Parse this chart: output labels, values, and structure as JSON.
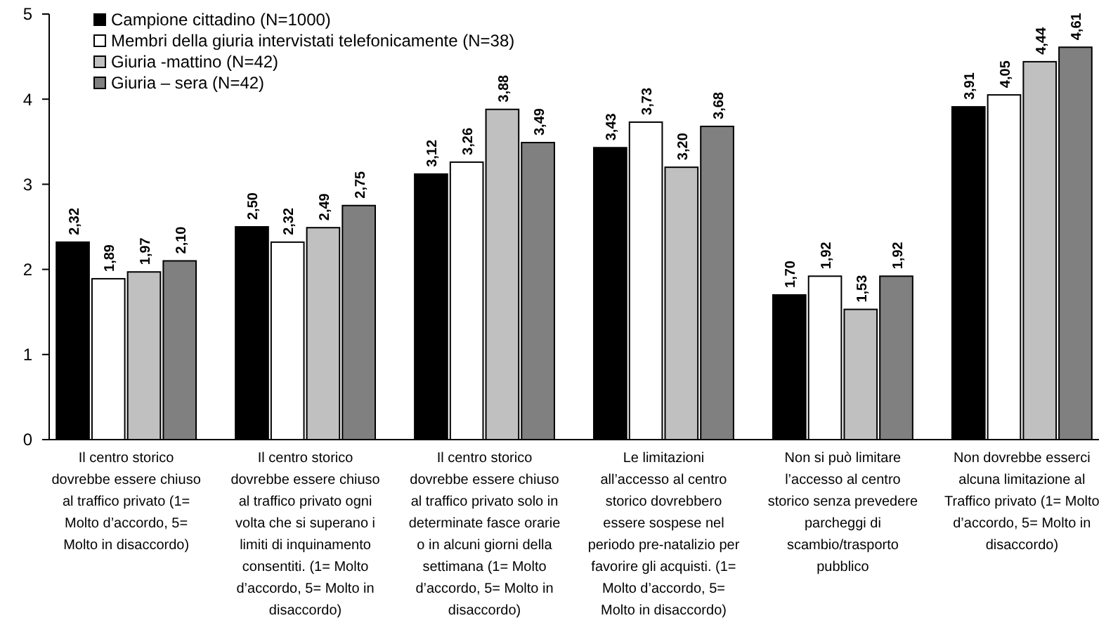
{
  "chart_data": {
    "type": "bar",
    "categories": [
      "Il centro storico\ndovrebbe essere chiuso\nal traffico privato (1=\nMolto d’accordo, 5=\nMolto in disaccordo)",
      "Il centro storico\ndovrebbe essere chiuso\nal traffico privato ogni\nvolta che si superano i\nlimiti di inquinamento\nconsentiti. (1= Molto\nd’accordo, 5= Molto in\ndisaccordo)",
      "Il centro storico\ndovrebbe essere chiuso\nal traffico privato solo in\ndeterminate fasce orarie\no in alcuni giorni della\nsettimana (1= Molto\nd’accordo, 5= Molto in\ndisaccordo)",
      "Le limitazioni\nall’accesso al centro\nstorico dovrebbero\nessere sospese nel\nperiodo pre-natalizio per\nfavorire gli acquisti. (1=\nMolto d’accordo, 5=\nMolto in disaccordo)",
      "Non si può limitare\nl’accesso al centro\nstorico senza prevedere\nparcheggi di\nscambio/trasporto\npubblico",
      "Non dovrebbe esserci\nalcuna limitazione al\nTraffico privato (1= Molto\nd’accordo, 5= Molto in\ndisaccordo)"
    ],
    "series": [
      {
        "name": "Campione cittadino (N=1000)",
        "color": "#000000",
        "values": [
          2.32,
          2.5,
          3.12,
          3.43,
          1.7,
          3.91
        ],
        "value_labels": [
          "2,32",
          "2,50",
          "3,12",
          "3,43",
          "1,70",
          "3,91"
        ]
      },
      {
        "name": "Membri della giuria intervistati telefonicamente (N=38)",
        "color": "#ffffff",
        "values": [
          1.89,
          2.32,
          3.26,
          3.73,
          1.92,
          4.05
        ],
        "value_labels": [
          "1,89",
          "2,32",
          "3,26",
          "3,73",
          "1,92",
          "4,05"
        ]
      },
      {
        "name": "Giuria -mattino (N=42)",
        "color": "#c0c0c0",
        "values": [
          1.97,
          2.49,
          3.88,
          3.2,
          1.53,
          4.44
        ],
        "value_labels": [
          "1,97",
          "2,49",
          "3,88",
          "3,20",
          "1,53",
          "4,44"
        ]
      },
      {
        "name": "Giuria – sera (N=42)",
        "color": "#808080",
        "values": [
          2.1,
          2.75,
          3.49,
          3.68,
          1.92,
          4.61
        ],
        "value_labels": [
          "2,10",
          "2,75",
          "3,49",
          "3,68",
          "1,92",
          "4,61"
        ]
      }
    ],
    "ylim": [
      0,
      5
    ],
    "yticks": [
      0,
      1,
      2,
      3,
      4,
      5
    ],
    "grid": false,
    "legend": "top left"
  }
}
